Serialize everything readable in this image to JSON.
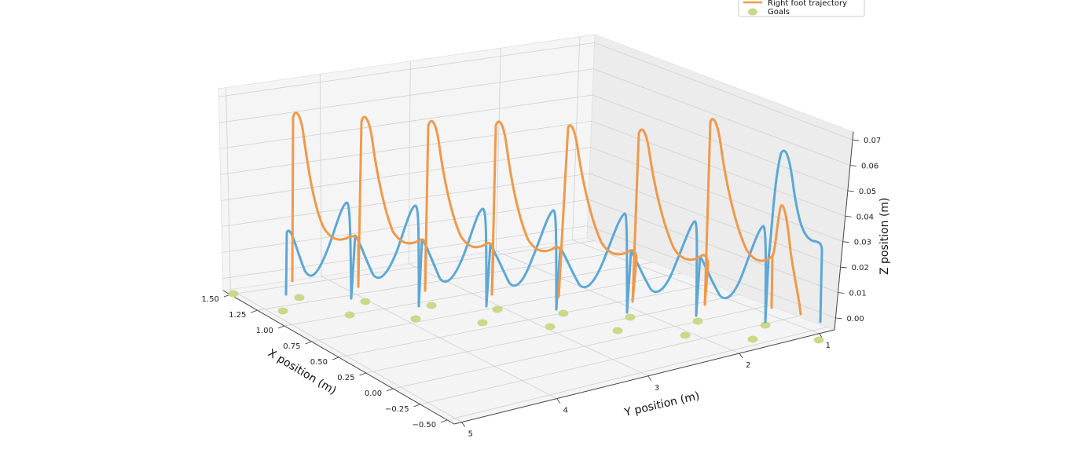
{
  "chart_data": {
    "type": "line3d",
    "title": "",
    "xlabel": "X position (m)",
    "ylabel": "Y position (m)",
    "zlabel": "Z position (m)",
    "x_ticks": [
      "1.50",
      "1.25",
      "1.00",
      "0.75",
      "0.50",
      "0.25",
      "0.00",
      "−0.25",
      "−0.50"
    ],
    "y_ticks": [
      "5",
      "4",
      "3",
      "2",
      "1"
    ],
    "z_ticks": [
      "0.00",
      "0.01",
      "0.02",
      "0.03",
      "0.04",
      "0.05",
      "0.06",
      "0.07"
    ],
    "grid": true,
    "legend_position": "top-right",
    "legend": [
      {
        "label": "Right foot trajectory",
        "kind": "line",
        "color": "#f0994a"
      },
      {
        "label": "Goals",
        "kind": "marker",
        "color": "#c8d98a"
      }
    ],
    "colors": {
      "left_foot": "#5ba8d6",
      "right_foot": "#f0994a",
      "goals": "#c8d98a"
    }
  }
}
